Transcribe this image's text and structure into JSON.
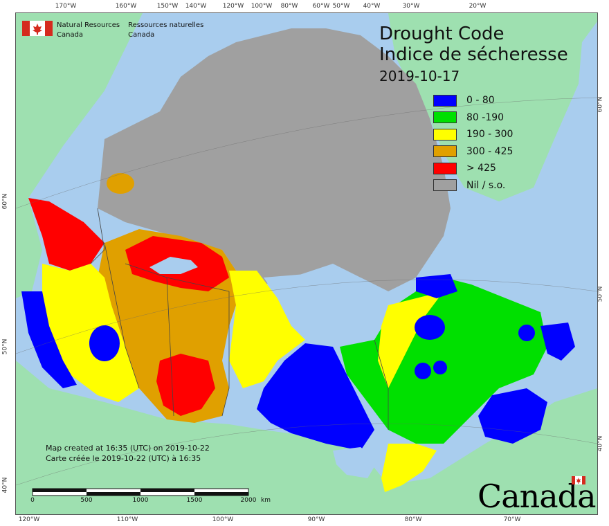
{
  "map": {
    "title_en": "Drought Code",
    "title_fr": "Indice de sécheresse",
    "date": "2019-10-17",
    "created_en": "Map created at 16:35 (UTC) on 2019-10-22",
    "created_fr": "Carte créée le 2019-10-22 (UTC) à 16:35"
  },
  "agency": {
    "name_en_1": "Natural Resources",
    "name_en_2": "Canada",
    "name_fr_1": "Ressources naturelles",
    "name_fr_2": "Canada",
    "wordmark": "Canada"
  },
  "legend": [
    {
      "label": "0 - 80",
      "color": "#0000ff"
    },
    {
      "label": "80 -190",
      "color": "#00e000"
    },
    {
      "label": "190 - 300",
      "color": "#ffff00"
    },
    {
      "label": "300 - 425",
      "color": "#e0a000"
    },
    {
      "label": "> 425",
      "color": "#ff0000"
    },
    {
      "label": "Nil / s.o.",
      "color": "#a0a0a0"
    }
  ],
  "graticule": {
    "top": [
      "170°W",
      "160°W",
      "150°W",
      "140°W",
      "120°W",
      "100°W",
      "80°W",
      "60°W",
      "50°W",
      "40°W",
      "30°W",
      "20°W"
    ],
    "bottom": [
      "120°W",
      "110°W",
      "100°W",
      "90°W",
      "80°W",
      "70°W"
    ],
    "left": [
      "60°N",
      "50°N",
      "40°N"
    ],
    "right": [
      "60°N",
      "50°N",
      "40°N"
    ]
  },
  "scale": {
    "ticks": [
      "0",
      "500",
      "1000",
      "1500",
      "2000"
    ],
    "unit": "km"
  },
  "colors": {
    "ocean": "#a9cdee",
    "land_other": "#9ee0b0",
    "nil": "#a0a0a0"
  }
}
